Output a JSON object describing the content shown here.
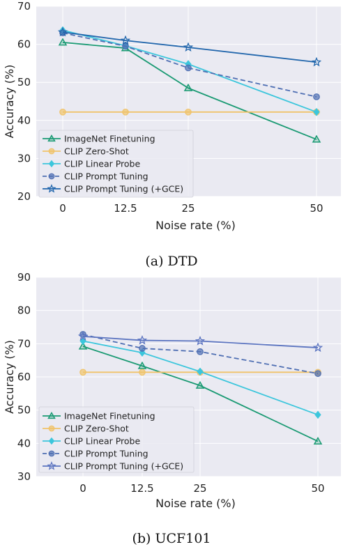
{
  "chart_data": [
    {
      "type": "line",
      "caption": "(a) DTD",
      "xlabel": "Noise rate (%)",
      "ylabel": "Accuracy (%)",
      "x_tick_labels": [
        "0",
        "12.5",
        "25",
        "50"
      ],
      "x": [
        0,
        12.5,
        25,
        50
      ],
      "ylim": [
        20,
        70
      ],
      "yticks": [
        20,
        30,
        40,
        50,
        60,
        70
      ],
      "grid": true,
      "legend_position": "bottom-left",
      "series": [
        {
          "name": "ImageNet Finetuning",
          "values": [
            60.5,
            59.0,
            48.5,
            35.0
          ],
          "color": "#1a9a73",
          "marker": "triangle",
          "dash": false
        },
        {
          "name": "CLIP Zero-Shot",
          "values": [
            42.2,
            42.2,
            42.2,
            42.2
          ],
          "color": "#f0c36a",
          "marker": "circle",
          "dash": false
        },
        {
          "name": "CLIP Linear Probe",
          "values": [
            63.7,
            59.6,
            54.8,
            42.2
          ],
          "color": "#3cc6dc",
          "marker": "diamond",
          "dash": false
        },
        {
          "name": "CLIP Prompt Tuning",
          "values": [
            63.0,
            59.5,
            53.8,
            46.2
          ],
          "color": "#4f6fb3",
          "marker": "circle",
          "dash": true
        },
        {
          "name": "CLIP Prompt Tuning (+GCE)",
          "values": [
            63.2,
            61.0,
            59.2,
            55.3
          ],
          "color": "#2166ac",
          "marker": "star",
          "dash": false
        }
      ]
    },
    {
      "type": "line",
      "caption": "(b) UCF101",
      "xlabel": "Noise rate (%)",
      "ylabel": "Accuracy (%)",
      "x_tick_labels": [
        "0",
        "12.5",
        "25",
        "50"
      ],
      "x": [
        0,
        12.5,
        25,
        50
      ],
      "ylim": [
        30,
        90
      ],
      "yticks": [
        30,
        40,
        50,
        60,
        70,
        80,
        90
      ],
      "grid": true,
      "legend_position": "bottom-left",
      "series": [
        {
          "name": "ImageNet Finetuning",
          "values": [
            69.2,
            63.3,
            57.4,
            40.6
          ],
          "color": "#1a9a73",
          "marker": "triangle",
          "dash": false
        },
        {
          "name": "CLIP Zero-Shot",
          "values": [
            61.4,
            61.4,
            61.4,
            61.4
          ],
          "color": "#f0c36a",
          "marker": "circle",
          "dash": false
        },
        {
          "name": "CLIP Linear Probe",
          "values": [
            70.8,
            67.3,
            61.6,
            48.6
          ],
          "color": "#3cc6dc",
          "marker": "diamond",
          "dash": false
        },
        {
          "name": "CLIP Prompt Tuning",
          "values": [
            72.8,
            68.6,
            67.6,
            61.0
          ],
          "color": "#4f6fb3",
          "marker": "circle",
          "dash": true
        },
        {
          "name": "CLIP Prompt Tuning (+GCE)",
          "values": [
            72.2,
            71.0,
            70.8,
            68.8
          ],
          "color": "#5b74c0",
          "marker": "star",
          "dash": false
        }
      ]
    }
  ]
}
